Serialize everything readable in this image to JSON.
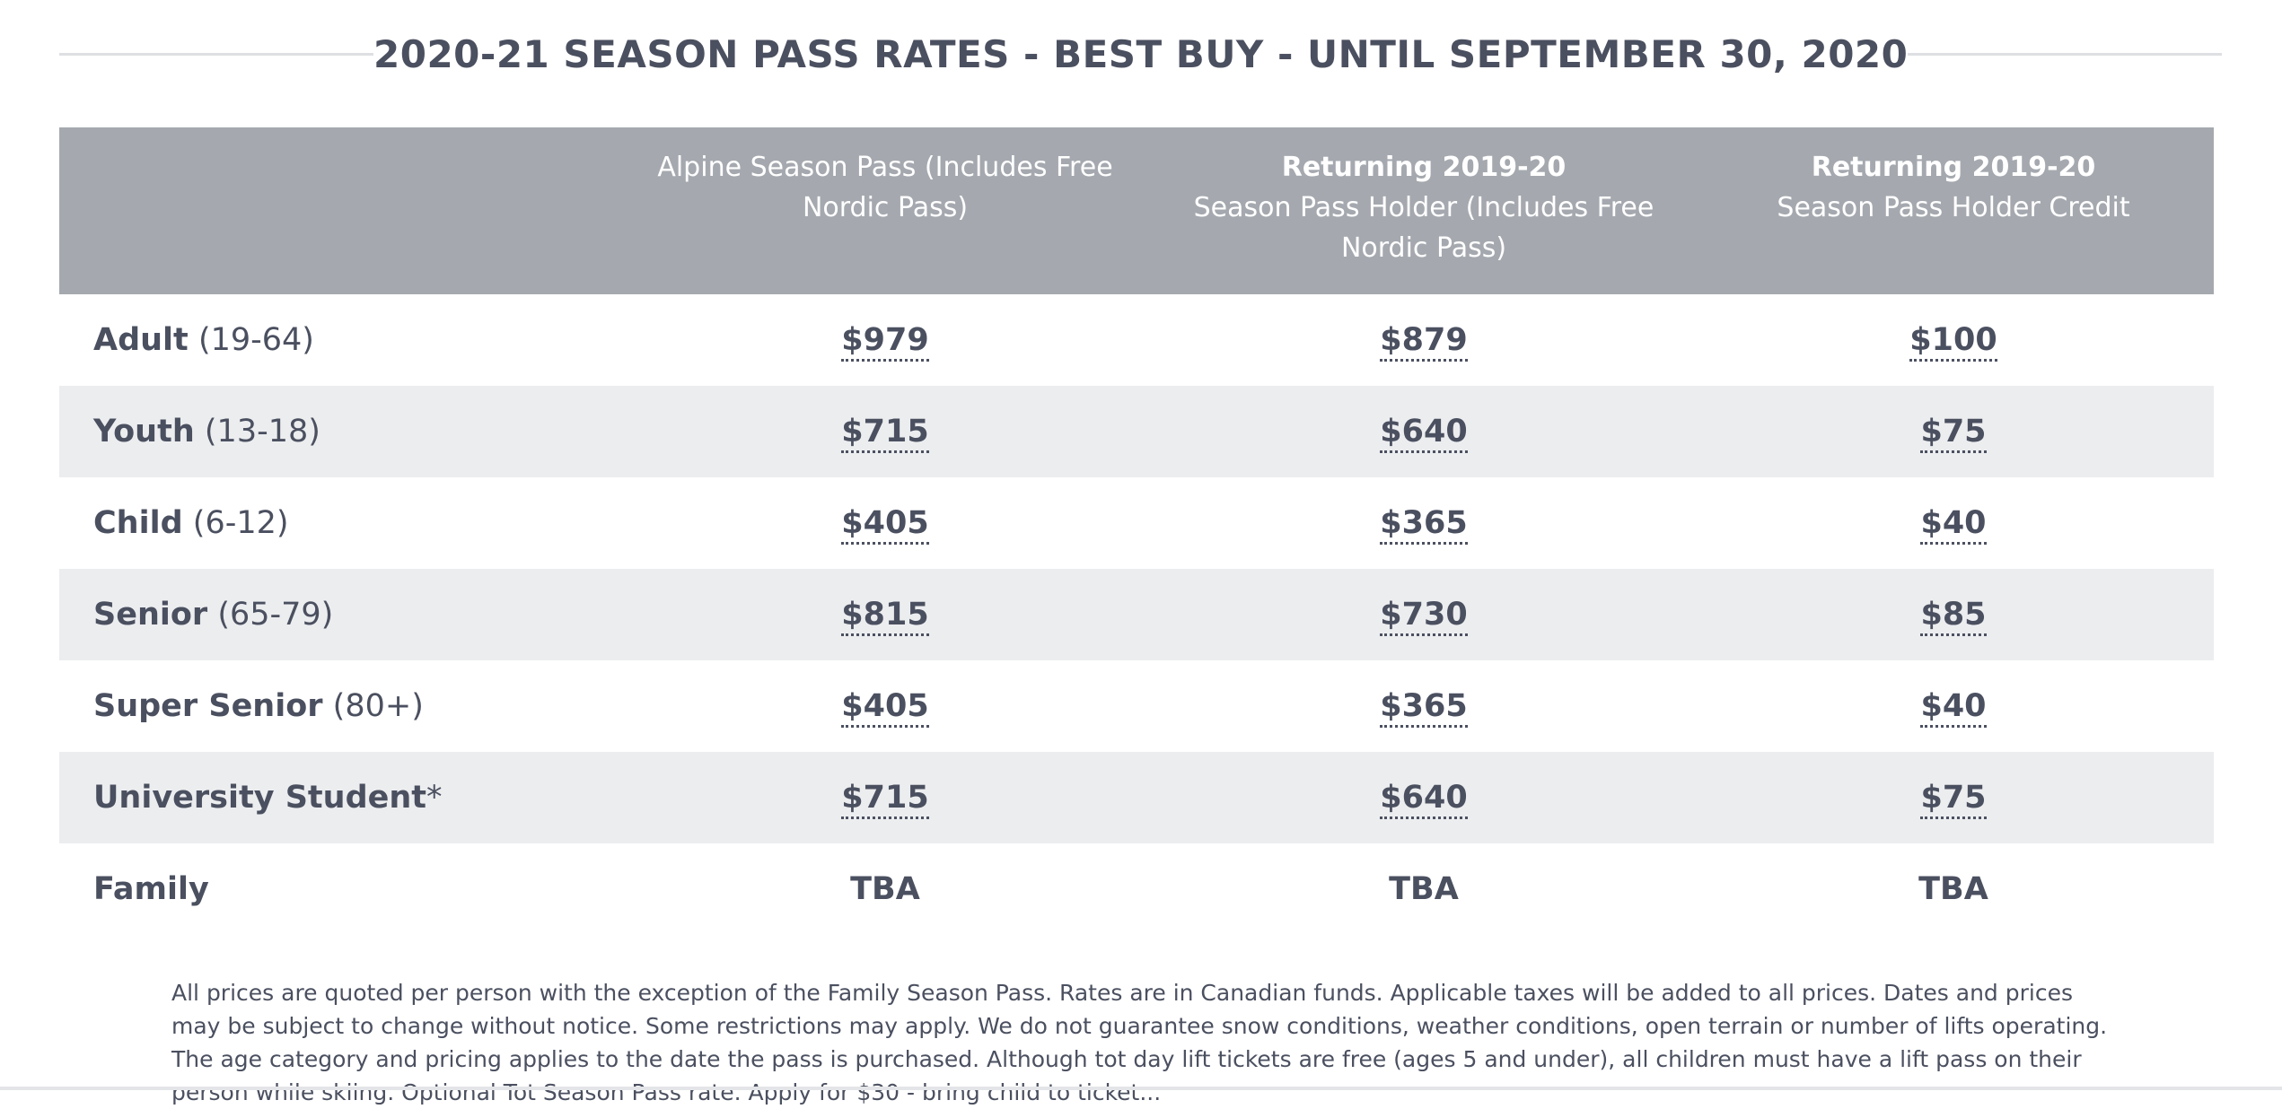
{
  "title": "2020-21 SEASON PASS RATES - BEST BUY - UNTIL SEPTEMBER 30, 2020",
  "columns": [
    {
      "strong": "",
      "sub": "Alpine Season Pass (Includes Free Nordic Pass)"
    },
    {
      "strong": "Returning 2019-20",
      "sub": "Season Pass Holder (Includes Free Nordic Pass)"
    },
    {
      "strong": "Returning 2019-20",
      "sub": "Season Pass Holder Credit"
    }
  ],
  "rows": [
    {
      "name": "Adult",
      "age": "(19-64)",
      "values": [
        "$979",
        "$879",
        "$100"
      ]
    },
    {
      "name": "Youth",
      "age": "(13-18)",
      "values": [
        "$715",
        "$640",
        "$75"
      ]
    },
    {
      "name": "Child",
      "age": "(6-12)",
      "values": [
        "$405",
        "$365",
        "$40"
      ]
    },
    {
      "name": "Senior",
      "age": "(65-79)",
      "values": [
        "$815",
        "$730",
        "$85"
      ]
    },
    {
      "name": "Super Senior",
      "age": "(80+)",
      "values": [
        "$405",
        "$365",
        "$40"
      ]
    },
    {
      "name": "University Student",
      "age": "*",
      "values": [
        "$715",
        "$640",
        "$75"
      ]
    },
    {
      "name": "Family",
      "age": "",
      "values": [
        "TBA",
        "TBA",
        "TBA"
      ]
    }
  ],
  "footnote": "All prices are quoted per person with the exception of the Family Season Pass. Rates are in Canadian funds. Applicable taxes will be added to all prices. Dates and prices may be subject to change without notice. Some restrictions may apply. We do not guarantee snow conditions, weather conditions, open terrain or number of lifts operating. The age category and pricing applies to the date the pass is purchased. Although tot day lift tickets are free (ages 5 and under), all children must have a lift pass on their person while skiing. Optional Tot Season Pass rate. Apply for $30 - bring child to ticket..."
}
